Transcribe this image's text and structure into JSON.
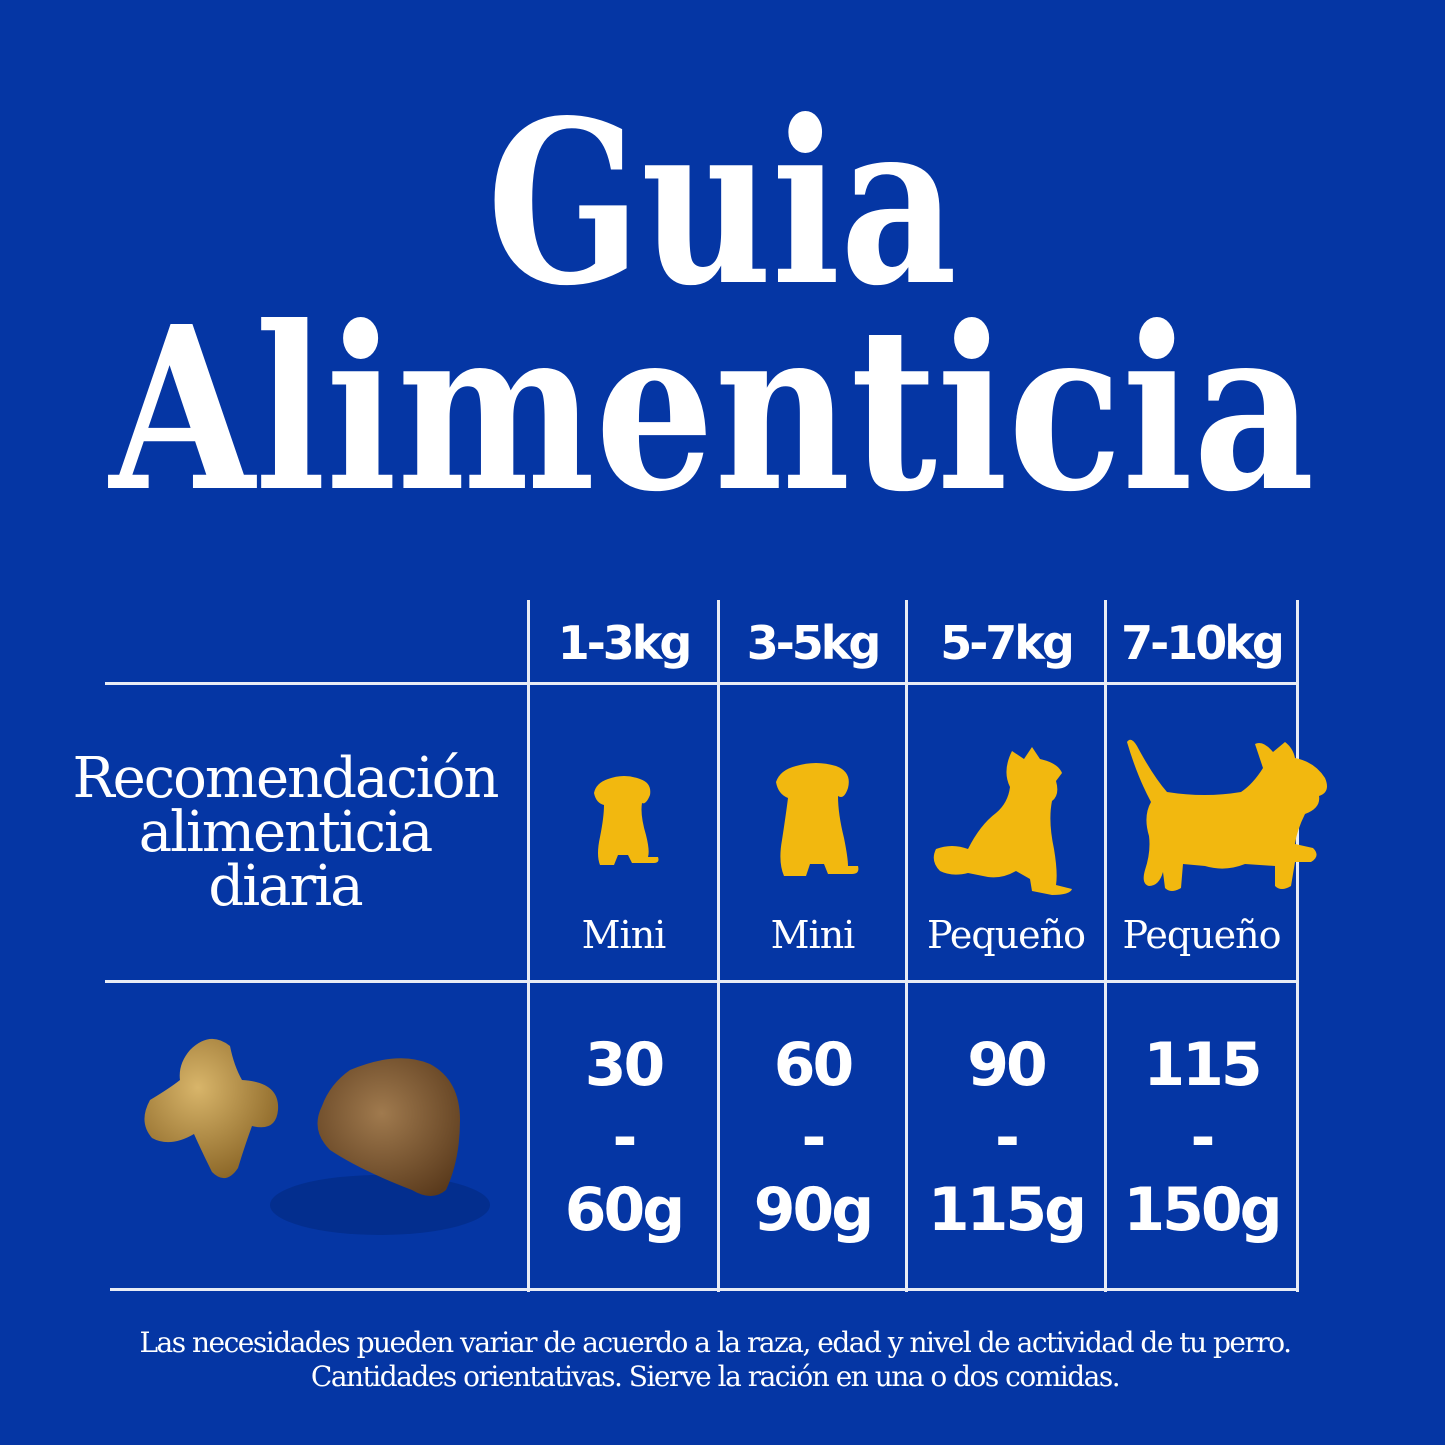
{
  "title": {
    "line1": "Guia",
    "line2": "Alimenticia"
  },
  "table": {
    "row_label": "Recomendación alimenticia diaria",
    "row_label_lines": [
      "Recomendación",
      "alimenticia",
      "diaria"
    ],
    "columns": [
      {
        "weight": "1-3kg",
        "size": "Mini",
        "icon": "puppy-sitting-icon",
        "amount_min": "30",
        "separator": "-",
        "amount_max": "60g"
      },
      {
        "weight": "3-5kg",
        "size": "Mini",
        "icon": "puppy-sitting-icon",
        "amount_min": "60",
        "separator": "-",
        "amount_max": "90g"
      },
      {
        "weight": "5-7kg",
        "size": "Pequeño",
        "icon": "dog-sitting-icon",
        "amount_min": "90",
        "separator": "-",
        "amount_max": "115g"
      },
      {
        "weight": "7-10kg",
        "size": "Pequeño",
        "icon": "dog-walking-icon",
        "amount_min": "115",
        "separator": "-",
        "amount_max": "150g"
      }
    ]
  },
  "footnote": {
    "line1": "Las necesidades pueden variar de acuerdo a la raza, edad y nivel de actividad de tu perro.",
    "line2": "Cantidades orientativas. Sierve la ración en una o dos comidas."
  },
  "colors": {
    "background": "#0536a4",
    "icon": "#f2b80f",
    "text": "#ffffff"
  }
}
